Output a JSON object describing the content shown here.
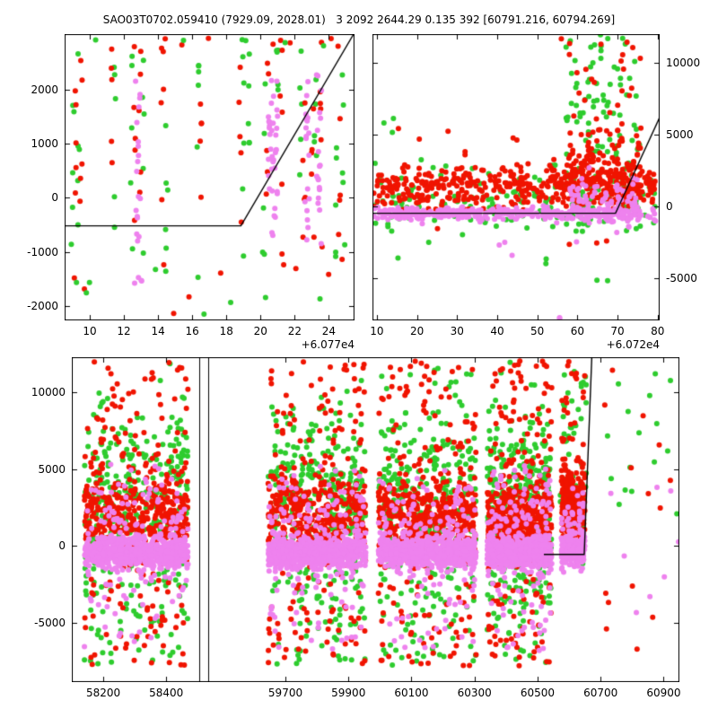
{
  "chart_data": {
    "type": "scatter",
    "title": "SAO03T0702.059410 (7929.09, 2028.01)   3 2092 2644.29 0.135 392 [60791.216, 60794.269]",
    "colors": {
      "red": "#f01400",
      "green": "#2ecc2e",
      "violet": "#ee82ee",
      "line": "#000000"
    },
    "marker_radius": 3,
    "charts": [
      {
        "name": "top-left",
        "seed": 7,
        "xlim": [
          8.53,
          25.5
        ],
        "ylim": [
          -2270,
          3030
        ],
        "xticks": {
          "values": [
            10,
            12,
            14,
            16,
            18,
            20,
            22,
            24
          ],
          "labels": [
            "10",
            "12",
            "14",
            "16",
            "18",
            "20",
            "22",
            "24"
          ]
        },
        "yticks": {
          "values": [
            -2000,
            -1000,
            0,
            1000,
            2000
          ],
          "labels": [
            "-2000",
            "-1000",
            "0",
            "1000",
            "2000"
          ],
          "side": "left"
        },
        "x_offset_label": "+6.077e4",
        "line": [
          [
            8.53,
            -520
          ],
          [
            18.85,
            -520
          ],
          [
            25.45,
            3030
          ]
        ],
        "clusters": [
          {
            "color": "green",
            "streak_xs": [
              9.0,
              9.35,
              11.5,
              12.45,
              13.15,
              14.5,
              16.35,
              18.95,
              19.3,
              20.2,
              21.0,
              22.35,
              23.2,
              24.45,
              24.85
            ],
            "per": 5,
            "jitter": 0.16,
            "ydist": "uniform",
            "y": [
              -1100,
              2750
            ]
          },
          {
            "color": "red",
            "streak_xs": [
              9.15,
              9.5,
              11.3,
              12.6,
              12.95,
              14.25,
              16.5,
              18.8,
              20.4,
              21.2,
              22.55,
              23.05,
              23.55,
              24.6
            ],
            "per": 5,
            "jitter": 0.16,
            "ydist": "uniform",
            "y": [
              -1050,
              2850
            ]
          },
          {
            "color": "violet",
            "streak_xs": [
              12.75,
              12.9,
              20.5,
              20.65,
              20.8,
              20.95,
              22.65,
              22.8,
              23.35,
              23.5
            ],
            "per": 9,
            "jitter": 0.14,
            "ydist": "uniform",
            "y": [
              -900,
              2350
            ]
          },
          {
            "color": "red",
            "n": 10,
            "x": [
              9,
              25
            ],
            "ydist": "uniform",
            "y": [
              -2150,
              -1100
            ]
          },
          {
            "color": "green",
            "n": 10,
            "x": [
              9,
              25
            ],
            "ydist": "uniform",
            "y": [
              -2200,
              -1100
            ]
          },
          {
            "color": "violet",
            "n": 4,
            "x": [
              12.5,
              13.2
            ],
            "ydist": "uniform",
            "y": [
              -1850,
              -1450
            ]
          },
          {
            "color": "red",
            "n": 8,
            "x": [
              9,
              25
            ],
            "ydist": "uniform",
            "y": [
              2780,
              2960
            ]
          },
          {
            "color": "green",
            "n": 6,
            "x": [
              9,
              25
            ],
            "ydist": "uniform",
            "y": [
              2780,
              2960
            ]
          }
        ]
      },
      {
        "name": "top-right",
        "seed": 11,
        "xlim": [
          8.9,
          80.5
        ],
        "ylim": [
          -7940,
          12000
        ],
        "xticks": {
          "values": [
            10,
            20,
            30,
            40,
            50,
            60,
            70,
            80
          ],
          "labels": [
            "10",
            "20",
            "30",
            "40",
            "50",
            "60",
            "70",
            "80"
          ]
        },
        "yticks": {
          "values": [
            -5000,
            0,
            5000,
            10000
          ],
          "labels": [
            "-5000",
            "0",
            "5000",
            "10000"
          ],
          "side": "right"
        },
        "x_offset_label": "+6.072e4",
        "line": [
          [
            8.9,
            -480
          ],
          [
            69.5,
            -480
          ],
          [
            80.5,
            6200
          ]
        ],
        "clusters": [
          {
            "color": "green",
            "n": 160,
            "x": [
              9.2,
              79.5
            ],
            "ydist": "gauss",
            "mean": 300,
            "sd": 1100,
            "clip": [
              -2200,
              3500
            ]
          },
          {
            "color": "green",
            "n": 110,
            "x": [
              57,
              75.5
            ],
            "ydist": "uniform",
            "y": [
              -1800,
              12000
            ]
          },
          {
            "color": "green",
            "n": 6,
            "x": [
              15,
              70
            ],
            "ydist": "uniform",
            "y": [
              -5800,
              -2500
            ]
          },
          {
            "color": "green",
            "n": 3,
            "x": [
              10,
              16
            ],
            "ydist": "uniform",
            "y": [
              4800,
              6200
            ]
          },
          {
            "color": "red",
            "n": 430,
            "x": [
              9.2,
              79.5
            ],
            "ydist": "gauss",
            "mean": 1350,
            "sd": 750,
            "clip": [
              -300,
              3600
            ]
          },
          {
            "color": "red",
            "n": 150,
            "x": [
              57,
              76
            ],
            "ydist": "gauss",
            "mean": 2600,
            "sd": 1600,
            "clip": [
              -500,
              6500
            ]
          },
          {
            "color": "red",
            "n": 30,
            "x": [
              55,
              76
            ],
            "ydist": "uniform",
            "y": [
              4500,
              11900
            ]
          },
          {
            "color": "red",
            "n": 6,
            "x": [
              10,
              50
            ],
            "ydist": "uniform",
            "y": [
              3500,
              5500
            ]
          },
          {
            "color": "red",
            "n": 4,
            "x": [
              20,
              78
            ],
            "ydist": "uniform",
            "y": [
              -3500,
              -1500
            ]
          },
          {
            "color": "violet",
            "n": 330,
            "x": [
              9.2,
              79.5
            ],
            "ydist": "gauss",
            "mean": -480,
            "sd": 230
          },
          {
            "color": "violet",
            "n": 90,
            "x": [
              58,
              75
            ],
            "ydist": "gauss",
            "mean": 200,
            "sd": 900
          },
          {
            "color": "violet",
            "n": 3,
            "x": [
              53,
              57
            ],
            "ydist": "uniform",
            "y": [
              -8300,
              -7600
            ]
          },
          {
            "color": "violet",
            "n": 3,
            "x": [
              30,
              50
            ],
            "ydist": "uniform",
            "y": [
              -3500,
              -2200
            ]
          }
        ]
      },
      {
        "name": "bottom",
        "seed": 23,
        "xmap": [
          [
            58100,
            0
          ],
          [
            58505,
            0.2097
          ],
          [
            59455,
            0.2245
          ],
          [
            60950,
            1
          ]
        ],
        "dividers": [
          0.2097,
          0.2245
        ],
        "ylim": [
          -8855,
          12280
        ],
        "xticks": {
          "values": [
            58200,
            58400,
            59700,
            59900,
            60100,
            60300,
            60500,
            60700,
            60900
          ],
          "labels": [
            "58200",
            "58400",
            "59700",
            "59900",
            "60100",
            "60300",
            "60500",
            "60700",
            "60900"
          ]
        },
        "yticks": {
          "values": [
            -5000,
            0,
            5000,
            10000
          ],
          "labels": [
            "-5000",
            "0",
            "5000",
            "10000"
          ],
          "side": "left"
        },
        "line": [
          [
            60520,
            -550
          ],
          [
            60648,
            -550
          ],
          [
            60672,
            12280
          ]
        ],
        "bands": {
          "x_ranges": [
            [
              58140,
              58470
            ],
            [
              59645,
              59955
            ],
            [
              59995,
              60305
            ],
            [
              60340,
              60545
            ]
          ],
          "profile": [
            {
              "color": "green",
              "n": 300,
              "ydist": "gauss",
              "mean": 2800,
              "sd": 3300,
              "clip": [
                -8000,
                12200
              ]
            },
            {
              "color": "green",
              "n": 40,
              "ydist": "uniform",
              "y": [
                -7800,
                -2000
              ]
            },
            {
              "color": "red",
              "n": 430,
              "ydist": "gauss",
              "mean": 1700,
              "sd": 1500,
              "clip": [
                -2500,
                6500
              ]
            },
            {
              "color": "red",
              "n": 60,
              "ydist": "uniform",
              "y": [
                5000,
                12100
              ]
            },
            {
              "color": "red",
              "n": 50,
              "ydist": "uniform",
              "y": [
                -7800,
                -2200
              ]
            },
            {
              "color": "violet",
              "n": 640,
              "ydist": "gauss",
              "mean": -450,
              "sd": 480
            },
            {
              "color": "violet",
              "n": 130,
              "ydist": "gauss",
              "mean": 800,
              "sd": 2200,
              "clip": [
                -4000,
                5500
              ]
            },
            {
              "color": "violet",
              "n": 25,
              "ydist": "uniform",
              "y": [
                -6800,
                -2000
              ]
            }
          ]
        },
        "clusters": [
          {
            "color": "green",
            "n": 55,
            "x": [
              60570,
              60655
            ],
            "ydist": "uniform",
            "y": [
              -1200,
              11600
            ]
          },
          {
            "color": "red",
            "n": 260,
            "x": [
              60575,
              60650
            ],
            "ydist": "gauss",
            "mean": 2700,
            "sd": 1300,
            "clip": [
              -500,
              5800
            ]
          },
          {
            "color": "red",
            "n": 22,
            "x": [
              60575,
              60650
            ],
            "ydist": "uniform",
            "y": [
              6000,
              12000
            ]
          },
          {
            "color": "violet",
            "n": 210,
            "x": [
              60575,
              60650
            ],
            "ydist": "gauss",
            "mean": -350,
            "sd": 480
          },
          {
            "color": "violet",
            "n": 45,
            "x": [
              60575,
              60650
            ],
            "ydist": "gauss",
            "mean": 1200,
            "sd": 1400,
            "clip": [
              -2500,
              4500
            ]
          },
          {
            "color": "green",
            "n": 16,
            "x": [
              60700,
              60950
            ],
            "ydist": "uniform",
            "y": [
              1500,
              12100
            ]
          },
          {
            "color": "red",
            "n": 14,
            "x": [
              60700,
              60950
            ],
            "ydist": "uniform",
            "y": [
              -6800,
              12000
            ]
          },
          {
            "color": "violet",
            "n": 8,
            "x": [
              60700,
              60950
            ],
            "ydist": "uniform",
            "y": [
              -6000,
              4000
            ]
          }
        ]
      }
    ]
  }
}
